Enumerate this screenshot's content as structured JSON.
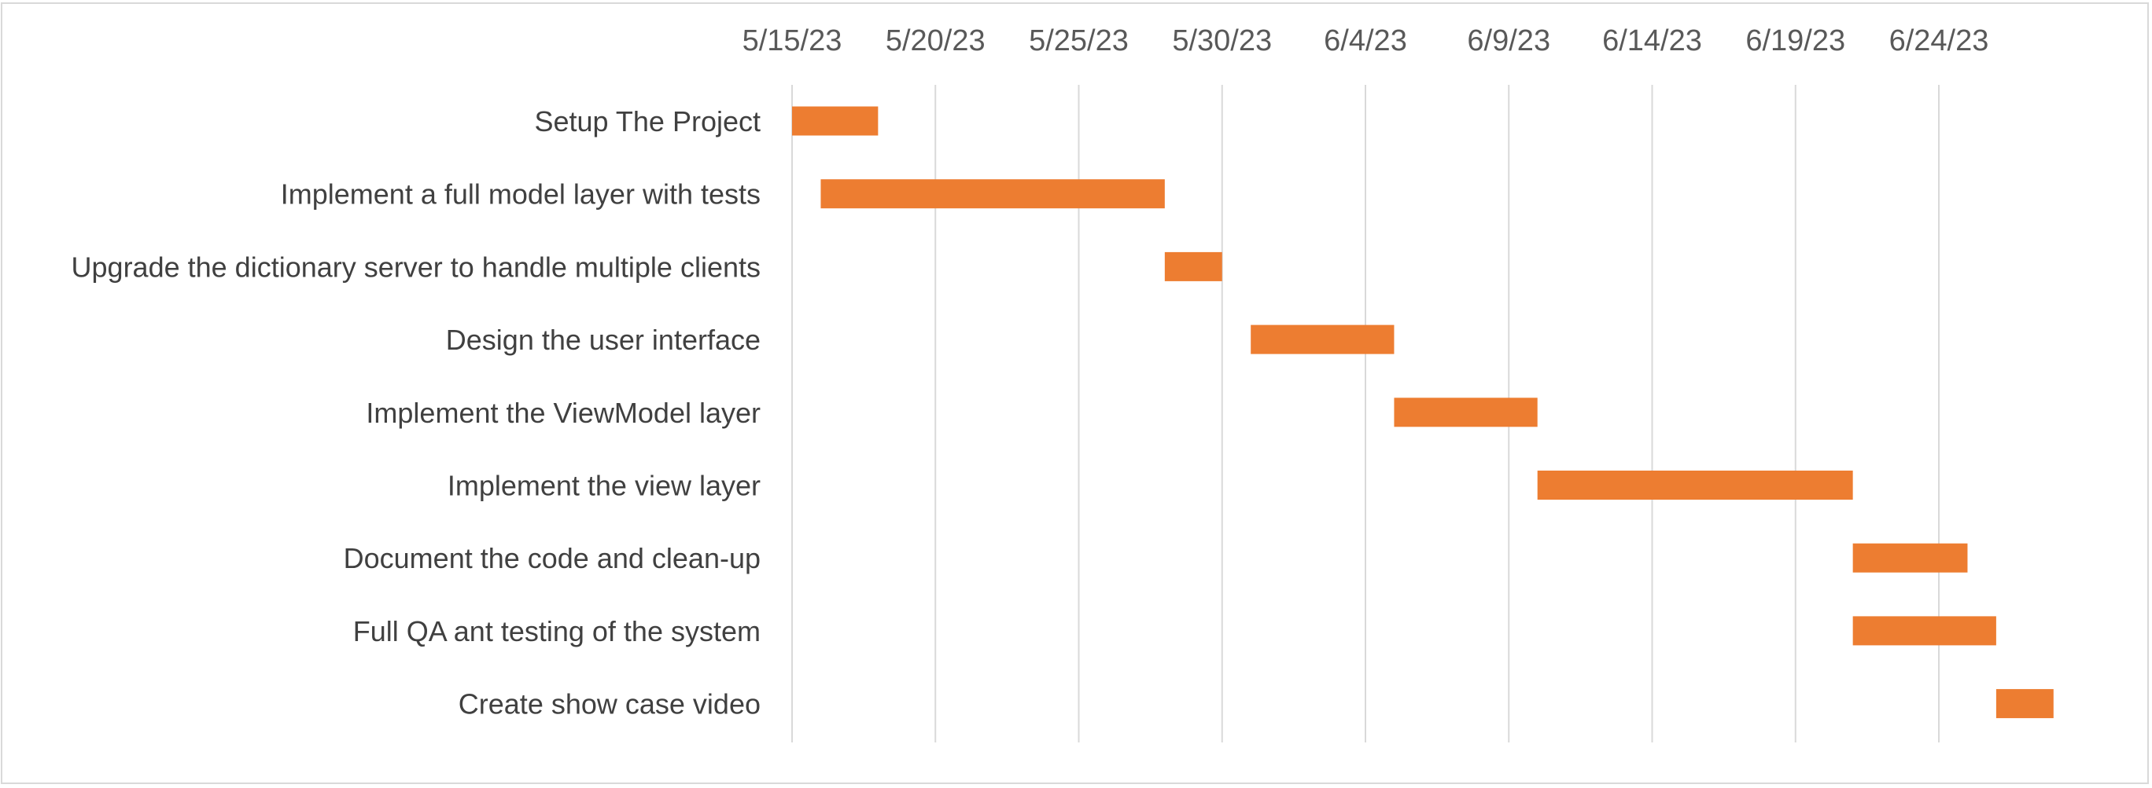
{
  "chart_data": {
    "type": "bar",
    "orientation": "horizontal",
    "title": "",
    "xlabel": "",
    "ylabel": "",
    "x_axis_position": "top",
    "grid": "vertical",
    "legend": "none",
    "bar_color": "#ED7D31",
    "grid_color": "#d9d9d9",
    "xlim": [
      "2023-05-15",
      "2023-06-28"
    ],
    "tick_labels": [
      "5/15/23",
      "5/20/23",
      "5/25/23",
      "5/30/23",
      "6/4/23",
      "6/9/23",
      "6/14/23",
      "6/19/23",
      "6/24/23"
    ],
    "tick_dates": [
      "2023-05-15",
      "2023-05-20",
      "2023-05-25",
      "2023-05-30",
      "2023-06-04",
      "2023-06-09",
      "2023-06-14",
      "2023-06-19",
      "2023-06-24"
    ],
    "tasks": [
      {
        "label": "Setup The Project",
        "start": "2023-05-15",
        "end": "2023-05-18"
      },
      {
        "label": "Implement a full model layer with tests",
        "start": "2023-05-16",
        "end": "2023-05-28"
      },
      {
        "label": "Upgrade the dictionary server to handle multiple clients",
        "start": "2023-05-28",
        "end": "2023-05-30"
      },
      {
        "label": "Design the user interface",
        "start": "2023-05-31",
        "end": "2023-06-05"
      },
      {
        "label": "Implement the ViewModel layer",
        "start": "2023-06-05",
        "end": "2023-06-10"
      },
      {
        "label": "Implement the view layer",
        "start": "2023-06-10",
        "end": "2023-06-21"
      },
      {
        "label": "Document the code and clean-up",
        "start": "2023-06-21",
        "end": "2023-06-25"
      },
      {
        "label": "Full QA ant testing of the system",
        "start": "2023-06-21",
        "end": "2023-06-26"
      },
      {
        "label": "Create show case video",
        "start": "2023-06-26",
        "end": "2023-06-28"
      }
    ]
  }
}
